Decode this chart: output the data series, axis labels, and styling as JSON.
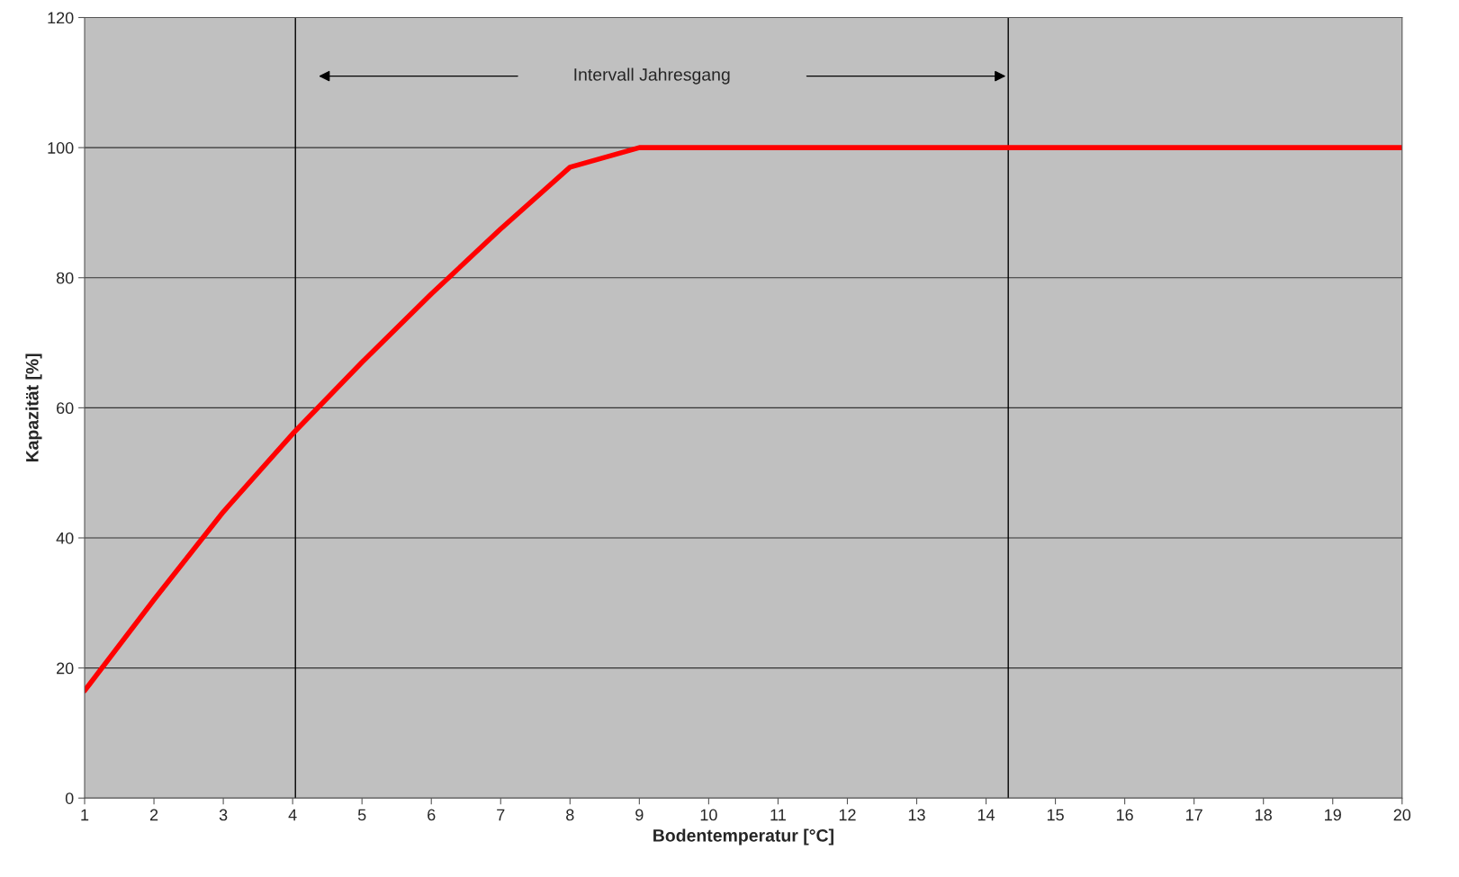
{
  "chart_data": {
    "type": "line",
    "x": [
      1,
      2,
      3,
      4,
      5,
      6,
      7,
      8,
      9,
      10,
      11,
      12,
      13,
      14,
      15,
      16,
      17,
      18,
      19,
      20
    ],
    "series": [
      {
        "color": "#ff0000",
        "values": [
          16.5,
          30.5,
          44,
          56,
          67,
          77.5,
          87.5,
          97,
          100,
          100,
          100,
          100,
          100,
          100,
          100,
          100,
          100,
          100,
          100,
          100
        ]
      }
    ],
    "xlabel": "Bodentemperatur [°C]",
    "ylabel": "Kapazität [%]",
    "xlim": [
      1,
      20
    ],
    "xticks": [
      1,
      2,
      3,
      4,
      5,
      6,
      7,
      8,
      9,
      10,
      11,
      12,
      13,
      14,
      15,
      16,
      17,
      18,
      19,
      20
    ],
    "ylim": [
      0,
      120
    ],
    "yticks": [
      0,
      20,
      40,
      60,
      80,
      100,
      120
    ],
    "grid": "y",
    "ref_lines": [
      {
        "axis": "x",
        "value": 4.04,
        "color": "#000000"
      },
      {
        "axis": "x",
        "value": 14.32,
        "color": "#000000"
      }
    ],
    "annotations": [
      "Intervall Jahresgang"
    ]
  }
}
